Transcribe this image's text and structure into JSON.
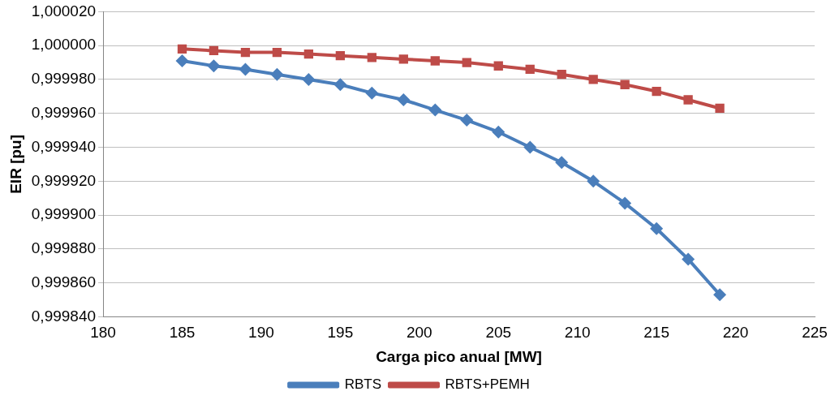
{
  "chart_data": {
    "type": "line",
    "xlabel": "Carga pico anual [MW]",
    "ylabel": "EIR [pu]",
    "x": [
      185,
      187,
      189,
      191,
      193,
      195,
      197,
      199,
      201,
      203,
      205,
      207,
      209,
      211,
      213,
      215,
      217,
      219
    ],
    "series": [
      {
        "name": "RBTS",
        "color": "#4a7ebb",
        "marker": "diamond",
        "values": [
          0.999991,
          0.999988,
          0.999986,
          0.999983,
          0.99998,
          0.999977,
          0.999972,
          0.999968,
          0.999962,
          0.999956,
          0.999949,
          0.99994,
          0.999931,
          0.99992,
          0.999907,
          0.999892,
          0.999874,
          0.999853
        ]
      },
      {
        "name": "RBTS+PEMH",
        "color": "#be4b48",
        "marker": "square",
        "values": [
          0.999998,
          0.999997,
          0.999996,
          0.999996,
          0.999995,
          0.999994,
          0.999993,
          0.999992,
          0.999991,
          0.99999,
          0.999988,
          0.999986,
          0.999983,
          0.99998,
          0.999977,
          0.999973,
          0.999968,
          0.999963
        ]
      }
    ],
    "xlim": [
      180,
      225
    ],
    "xticks": [
      180,
      185,
      190,
      195,
      200,
      205,
      210,
      215,
      220,
      225
    ],
    "ylim": [
      0.99984,
      1.00002
    ],
    "yticks": [
      {
        "value": 0.99984,
        "label": "0,999840"
      },
      {
        "value": 0.99986,
        "label": "0,999860"
      },
      {
        "value": 0.99988,
        "label": "0,999880"
      },
      {
        "value": 0.9999,
        "label": "0,999900"
      },
      {
        "value": 0.99992,
        "label": "0,999920"
      },
      {
        "value": 0.99994,
        "label": "0,999940"
      },
      {
        "value": 0.99996,
        "label": "0,999960"
      },
      {
        "value": 0.99998,
        "label": "0,999980"
      },
      {
        "value": 1,
        "label": "1,000000"
      },
      {
        "value": 1.00002,
        "label": "1,000020"
      }
    ],
    "grid": "y",
    "legend": "bottom",
    "line_style": "solid"
  }
}
